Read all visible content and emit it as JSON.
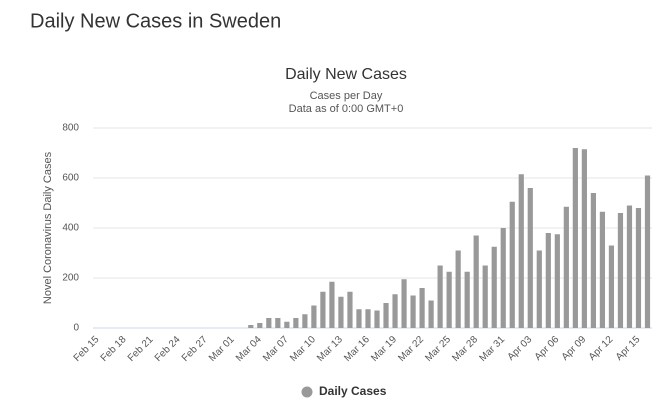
{
  "page_title": "Daily New Cases in Sweden",
  "chart_data": {
    "type": "bar",
    "title": "Daily New Cases",
    "subtitle": "Cases per Day",
    "subtitle2": "Data as of 0:00 GMT+0",
    "y_label": "Novel Coronavirus Daily Cases",
    "series": [
      {
        "name": "Daily Cases",
        "color": "#999999",
        "values": [
          0,
          0,
          0,
          0,
          0,
          0,
          0,
          0,
          0,
          0,
          0,
          0,
          0,
          0,
          0,
          0,
          0,
          12,
          20,
          40,
          40,
          25,
          40,
          55,
          90,
          145,
          185,
          125,
          145,
          75,
          75,
          70,
          100,
          135,
          195,
          130,
          160,
          110,
          250,
          225,
          310,
          225,
          370,
          250,
          325,
          400,
          505,
          615,
          560,
          310,
          380,
          375,
          485,
          720,
          715,
          540,
          465,
          330,
          460,
          490,
          480,
          610
        ]
      }
    ],
    "categories": [
      "Feb 15",
      null,
      null,
      "Feb 18",
      null,
      null,
      "Feb 21",
      null,
      null,
      "Feb 24",
      null,
      null,
      "Feb 27",
      null,
      null,
      "Mar 01",
      null,
      null,
      "Mar 04",
      null,
      null,
      "Mar 07",
      null,
      null,
      "Mar 10",
      null,
      null,
      "Mar 13",
      null,
      null,
      "Mar 16",
      null,
      null,
      "Mar 19",
      null,
      null,
      "Mar 22",
      null,
      null,
      "Mar 25",
      null,
      null,
      "Mar 28",
      null,
      null,
      "Mar 31",
      null,
      null,
      "Apr 03",
      null,
      null,
      "Apr 06",
      null,
      null,
      "Apr 09",
      null,
      null,
      "Apr 12",
      null,
      null,
      "Apr 15",
      null
    ],
    "ylim": [
      0,
      800
    ],
    "yticks": [
      0,
      200,
      400,
      600,
      800
    ],
    "grid": true,
    "legend": "bottom"
  }
}
